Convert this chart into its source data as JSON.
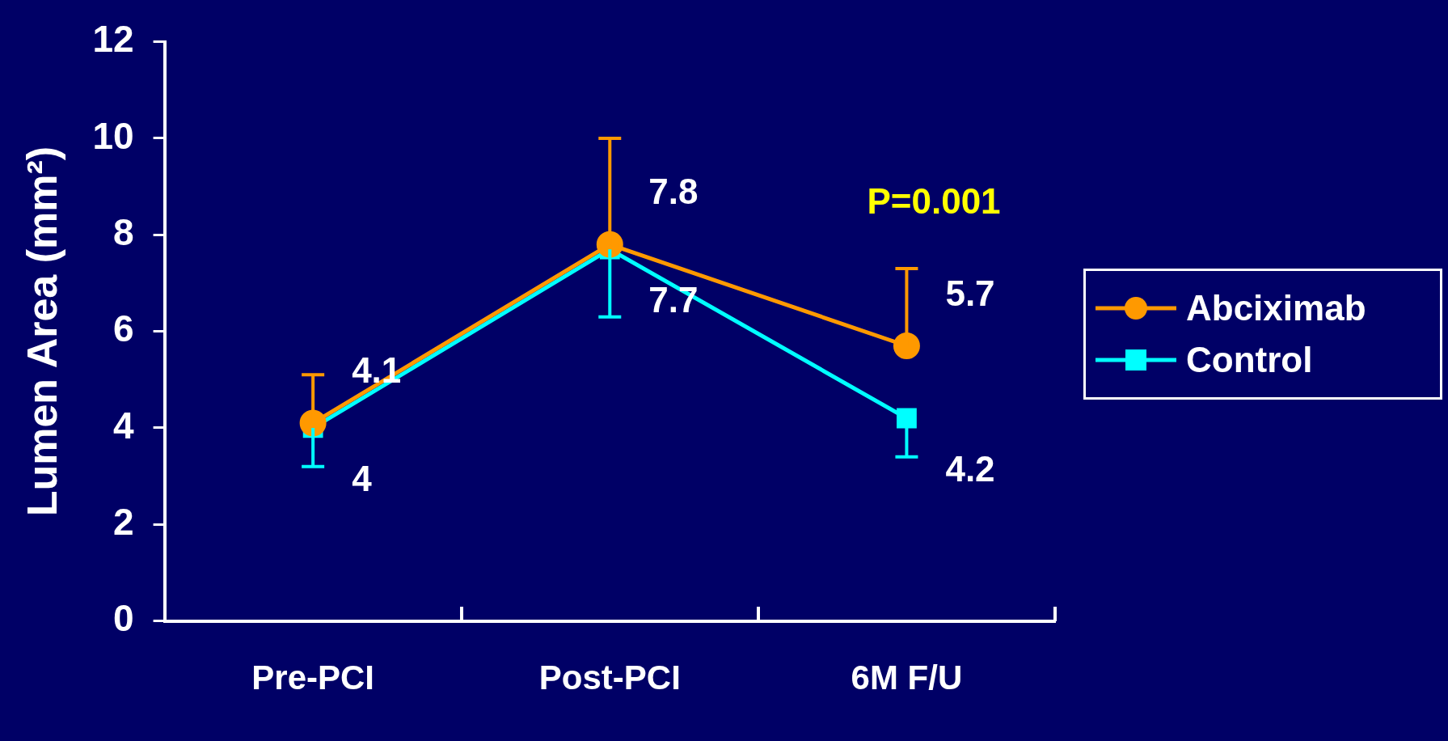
{
  "chart_data": {
    "type": "line",
    "ylabel": "Lumen Area (mm²)",
    "categories": [
      "Pre-PCI",
      "Post-PCI",
      "6M F/U"
    ],
    "series": [
      {
        "name": "Abciximab",
        "color": "#ff9900",
        "marker": "circle",
        "values": [
          4.1,
          7.8,
          5.7
        ],
        "errors": [
          [
            4.1,
            5.1
          ],
          [
            7.8,
            10.0
          ],
          [
            5.7,
            7.3
          ]
        ]
      },
      {
        "name": "Control",
        "color": "#00ffff",
        "marker": "square",
        "values": [
          4,
          7.7,
          4.2
        ],
        "errors": [
          [
            3.2,
            4
          ],
          [
            6.3,
            7.7
          ],
          [
            3.4,
            4.2
          ]
        ]
      }
    ],
    "ylim": [
      0,
      12
    ],
    "yticks": [
      0,
      2,
      4,
      6,
      8,
      10,
      12
    ],
    "grid": false,
    "legend": "right",
    "data_labels": true,
    "line_style": "solid",
    "annotations": [
      "P=0.001"
    ]
  }
}
